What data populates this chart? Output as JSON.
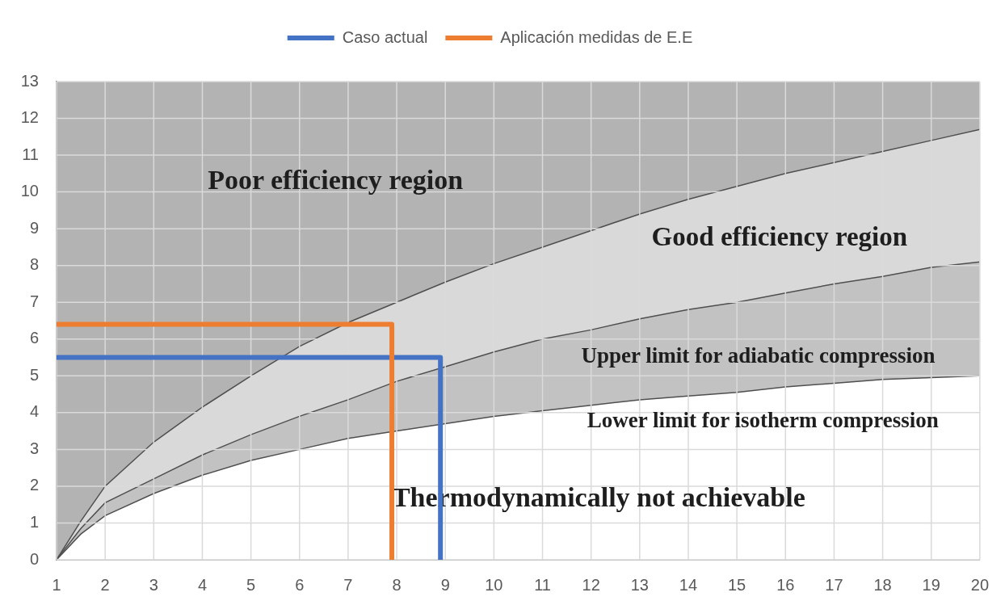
{
  "chart_data": {
    "type": "line",
    "x": [
      1,
      1.5,
      2,
      3,
      4,
      5,
      6,
      7,
      8,
      9,
      10,
      11,
      12,
      13,
      14,
      15,
      16,
      17,
      18,
      19,
      20
    ],
    "series": [
      {
        "type": "area",
        "color": "#d9d9d9",
        "values": [
          0,
          1.05,
          2.0,
          3.2,
          4.15,
          5.0,
          5.8,
          6.45,
          7.0,
          7.55,
          8.05,
          8.5,
          8.95,
          9.4,
          9.8,
          10.15,
          10.5,
          10.8,
          11.1,
          11.4,
          11.7
        ]
      },
      {
        "type": "area",
        "color": "#c2c2c2",
        "values": [
          0,
          0.85,
          1.55,
          2.2,
          2.85,
          3.4,
          3.9,
          4.35,
          4.85,
          5.25,
          5.65,
          6.0,
          6.25,
          6.55,
          6.8,
          7.0,
          7.25,
          7.5,
          7.7,
          7.95,
          8.1
        ]
      },
      {
        "type": "area",
        "color": "#ffffff",
        "values": [
          0,
          0.7,
          1.2,
          1.8,
          2.3,
          2.7,
          3.0,
          3.3,
          3.5,
          3.7,
          3.9,
          4.05,
          4.2,
          4.35,
          4.45,
          4.55,
          4.7,
          4.8,
          4.9,
          4.95,
          5.0
        ]
      },
      {
        "name": "Caso actual",
        "type": "line",
        "color": "#4472c4",
        "x": [
          1,
          8.9,
          8.9
        ],
        "values": [
          5.5,
          5.5,
          0
        ]
      },
      {
        "name": "Aplicación medidas de E.E",
        "type": "line",
        "color": "#ed7d31",
        "x": [
          1,
          7.9,
          7.9
        ],
        "values": [
          6.4,
          6.4,
          0
        ]
      }
    ],
    "xlim": [
      1,
      20
    ],
    "xticks": [
      1,
      2,
      3,
      4,
      5,
      6,
      7,
      8,
      9,
      10,
      11,
      12,
      13,
      14,
      15,
      16,
      17,
      18,
      19,
      20
    ],
    "ylim": [
      0,
      13
    ],
    "yticks": [
      0,
      1,
      2,
      3,
      4,
      5,
      6,
      7,
      8,
      9,
      10,
      11,
      12,
      13
    ],
    "grid": true,
    "legend": "top",
    "marker": "none",
    "line_style": "solid",
    "bands": [
      {
        "axis": "y",
        "from": 0,
        "to": 13,
        "color": "#b3b3b3"
      }
    ],
    "annotations": [
      "Poor efficiency region",
      "Good efficiency region",
      "Upper limit for adiabatic compression",
      "Lower limit for isotherm compression",
      "Thermodynamically not achievable"
    ]
  }
}
